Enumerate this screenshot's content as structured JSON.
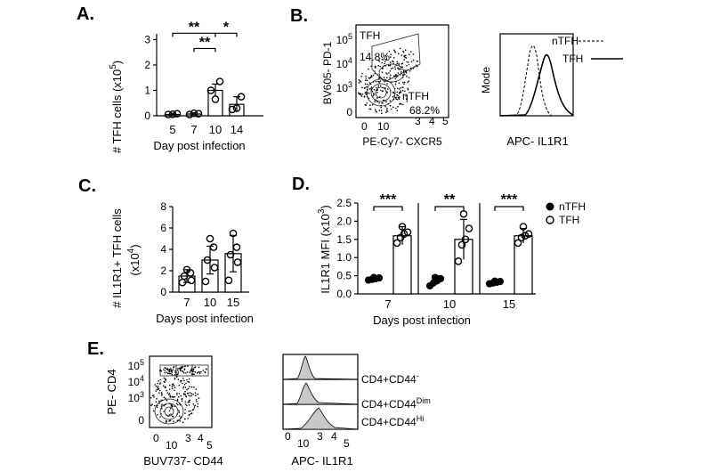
{
  "panels": {
    "a": "A.",
    "b": "B.",
    "c": "C.",
    "d": "D.",
    "e": "E."
  },
  "colors": {
    "ink": "#000000",
    "fill_grey": "#c8c8c8"
  },
  "chart_data": [
    {
      "id": "A",
      "type": "bar",
      "ylabel": "# TFH cells (x10",
      "ylabel_exp": "5",
      "ylabel_close": ")",
      "xlabel": "Day post infection",
      "categories": [
        "5",
        "7",
        "10",
        "14"
      ],
      "yticks": [
        "0",
        "1",
        "2",
        "3"
      ],
      "ylim": [
        0,
        3.3
      ],
      "means": [
        0.05,
        0.07,
        1.0,
        0.45
      ],
      "sd": [
        0.05,
        0.05,
        0.25,
        0.3
      ],
      "points": [
        [
          0.05,
          0.06,
          0.08
        ],
        [
          0.05,
          0.1,
          0.08
        ],
        [
          1.0,
          0.65,
          1.35
        ],
        [
          0.25,
          0.3,
          0.75
        ]
      ],
      "sig": [
        {
          "from": 0,
          "to": 2,
          "label": "**",
          "y": 3.25
        },
        {
          "from": 2,
          "to": 3,
          "label": "*",
          "y": 3.25
        },
        {
          "from": 1,
          "to": 2,
          "label": "**",
          "y": 2.65
        }
      ]
    },
    {
      "id": "C",
      "type": "bar",
      "ylabel": "# IL1R1+ TFH cells",
      "ylabel2": "(x10",
      "ylabel2_exp": "4",
      "ylabel2_close": ")",
      "xlabel": "Days post infection",
      "categories": [
        "7",
        "10",
        "15"
      ],
      "yticks": [
        "0",
        "2",
        "4",
        "6",
        "8"
      ],
      "ylim": [
        0,
        8
      ],
      "means": [
        1.5,
        3.0,
        3.6
      ],
      "sd": [
        0.6,
        1.3,
        1.7
      ],
      "points": [
        [
          0.9,
          1.1,
          1.5,
          1.8,
          2.1
        ],
        [
          1.0,
          2.3,
          3.0,
          4.2,
          5.0
        ],
        [
          1.1,
          2.8,
          3.5,
          4.2,
          5.5
        ]
      ]
    },
    {
      "id": "D",
      "type": "bar",
      "ylabel": "IL1R1 MFI (x10",
      "ylabel_exp": "3",
      "ylabel_close": ")",
      "xlabel": "Days post infection",
      "categories": [
        "7",
        "10",
        "15"
      ],
      "yticks": [
        "0.0",
        "0.5",
        "1.0",
        "1.5",
        "2.0",
        "2.5"
      ],
      "ylim": [
        0,
        2.5
      ],
      "series": [
        {
          "name": "nTFH",
          "means": [
            0.42,
            0.38,
            0.32
          ],
          "sd": [
            0.04,
            0.12,
            0.05
          ],
          "points": [
            [
              0.38,
              0.4,
              0.42,
              0.44,
              0.45
            ],
            [
              0.22,
              0.3,
              0.36,
              0.42,
              0.45
            ],
            [
              0.28,
              0.3,
              0.32,
              0.34,
              0.35
            ]
          ]
        },
        {
          "name": "TFH",
          "means": [
            1.6,
            1.5,
            1.6
          ],
          "sd": [
            0.25,
            0.55,
            0.2
          ],
          "points": [
            [
              1.4,
              1.55,
              1.65,
              1.7,
              1.85
            ],
            [
              0.9,
              1.35,
              1.5,
              1.8,
              2.2
            ],
            [
              1.4,
              1.55,
              1.6,
              1.65,
              1.85
            ]
          ]
        }
      ],
      "sig": [
        "***",
        "**",
        "***"
      ],
      "legend": [
        "nTFH",
        "TFH"
      ]
    }
  ],
  "panelB": {
    "flow_y": "BV605- PD-1",
    "flow_x": "PE-Cy7- CXCR5",
    "gate1": "TFH",
    "gate1_pct": "14.8%",
    "gate2": "nTFH",
    "gate2_pct": "68.2%",
    "flow_yticks": [
      "0",
      "10",
      "10",
      "10"
    ],
    "flow_yticks_exp": [
      "",
      "3",
      "4",
      "5"
    ],
    "flow_xticks": [
      "0",
      "10",
      "3",
      "4",
      "5"
    ],
    "hist_y": "Mode",
    "hist_x": "APC- IL1R1",
    "legend": [
      "nTFH",
      "TFH"
    ]
  },
  "panelE": {
    "flow_y": "PE- CD4",
    "flow_x": "BUV737- CD44",
    "flow_yticks": [
      "10",
      "10",
      "10",
      "0"
    ],
    "flow_yticks_exp": [
      "5",
      "4",
      "3",
      ""
    ],
    "flow_xticks": [
      "0",
      "10",
      "3",
      "4",
      "5"
    ],
    "hist_x": "APC- IL1R1",
    "hist_xticks": [
      "0",
      "10",
      "3",
      "4",
      "5"
    ],
    "pops": [
      {
        "label": "CD4+CD44",
        "sup": "-"
      },
      {
        "label": "CD4+CD44",
        "sup": "Dim"
      },
      {
        "label": "CD4+CD44",
        "sup": "Hi"
      }
    ]
  }
}
